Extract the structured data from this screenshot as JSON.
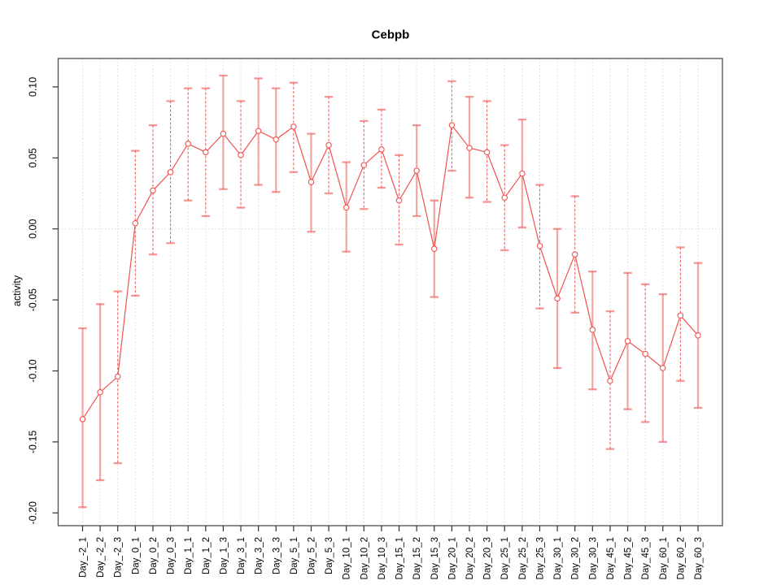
{
  "chart_data": {
    "type": "line",
    "title": "Cebpb",
    "xlabel": "",
    "ylabel": "activity",
    "legend": "none",
    "grid": {
      "vertical_dotted_gridlines": true,
      "horizontal_zero_line_dotted": true
    },
    "ylim": [
      -0.209,
      0.12
    ],
    "yticks": [
      0.1,
      0.05,
      0.0,
      -0.05,
      -0.1,
      -0.15,
      -0.2
    ],
    "ytick_labels": [
      "0.10",
      "0.05",
      "0.00",
      "-0.05",
      "-0.10",
      "-0.15",
      "-0.20"
    ],
    "xtick_label_rotation": -90,
    "categories": [
      "Day_-2_1",
      "Day_-2_2",
      "Day_-2_3",
      "Day_0_1",
      "Day_0_2",
      "Day_0_3",
      "Day_1_1",
      "Day_1_2",
      "Day_1_3",
      "Day_3_1",
      "Day_3_2",
      "Day_3_3",
      "Day_5_1",
      "Day_5_2",
      "Day_5_3",
      "Day_10_1",
      "Day_10_2",
      "Day_10_3",
      "Day_15_1",
      "Day_15_2",
      "Day_15_3",
      "Day_20_1",
      "Day_20_2",
      "Day_20_3",
      "Day_25_1",
      "Day_25_2",
      "Day_25_3",
      "Day_30_1",
      "Day_30_2",
      "Day_30_3",
      "Day_45_1",
      "Day_45_2",
      "Day_45_3",
      "Day_60_1",
      "Day_60_2",
      "Day_60_3"
    ],
    "series": [
      {
        "name": "activity",
        "marker": "open-circle",
        "values": [
          -0.134,
          -0.115,
          -0.104,
          0.004,
          0.027,
          0.04,
          0.06,
          0.054,
          0.067,
          0.052,
          0.069,
          0.063,
          0.072,
          0.033,
          0.059,
          0.015,
          0.045,
          0.056,
          0.02,
          0.041,
          -0.014,
          0.073,
          0.057,
          0.054,
          0.022,
          0.039,
          -0.012,
          -0.049,
          -0.018,
          -0.071,
          -0.107,
          -0.079,
          -0.088,
          -0.098,
          -0.061,
          -0.075
        ],
        "error_low": [
          -0.196,
          -0.177,
          -0.165,
          -0.047,
          -0.018,
          -0.01,
          0.02,
          0.009,
          0.028,
          0.015,
          0.031,
          0.026,
          0.04,
          -0.002,
          0.025,
          -0.016,
          0.014,
          0.029,
          -0.011,
          0.009,
          -0.048,
          0.041,
          0.022,
          0.019,
          -0.015,
          0.001,
          -0.056,
          -0.098,
          -0.059,
          -0.113,
          -0.155,
          -0.127,
          -0.136,
          -0.15,
          -0.107,
          -0.126
        ],
        "error_high": [
          -0.07,
          -0.053,
          -0.044,
          0.055,
          0.073,
          0.09,
          0.099,
          0.099,
          0.108,
          0.09,
          0.106,
          0.099,
          0.103,
          0.067,
          0.093,
          0.047,
          0.076,
          0.084,
          0.052,
          0.073,
          0.02,
          0.104,
          0.093,
          0.09,
          0.059,
          0.077,
          0.031,
          0.0,
          0.023,
          -0.03,
          -0.058,
          -0.031,
          -0.039,
          -0.046,
          -0.013,
          -0.024
        ],
        "error_bar_styles": [
          "solid",
          "solid",
          "dashed",
          "dashed",
          "dashed",
          "dashed",
          "dashed",
          "dashed",
          "solid",
          "dashed",
          "solid",
          "solid",
          "dashed",
          "solid",
          "dashed",
          "solid",
          "dashed",
          "dashed",
          "dashed",
          "solid",
          "solid",
          "dashed",
          "solid",
          "dashed",
          "dashed",
          "solid",
          "dashed",
          "solid",
          "dashed",
          "solid",
          "dashed",
          "solid",
          "dashed",
          "solid",
          "dashed",
          "solid"
        ]
      }
    ],
    "colors": {
      "series_line": "#ef5350",
      "marker_stroke": "#ef5350",
      "marker_fill": "#ffffff",
      "error_bar_solid": "rgba(240,83,80,0.50)",
      "error_bar_dashed": "rgba(238,72,70,0.85)",
      "error_cap": "rgba(240,83,80,0.60)",
      "gridline": "#d8d8d8",
      "axis_box": "#4d4d4d",
      "tick": "#333333",
      "text": "#000000",
      "background": "#ffffff"
    }
  }
}
